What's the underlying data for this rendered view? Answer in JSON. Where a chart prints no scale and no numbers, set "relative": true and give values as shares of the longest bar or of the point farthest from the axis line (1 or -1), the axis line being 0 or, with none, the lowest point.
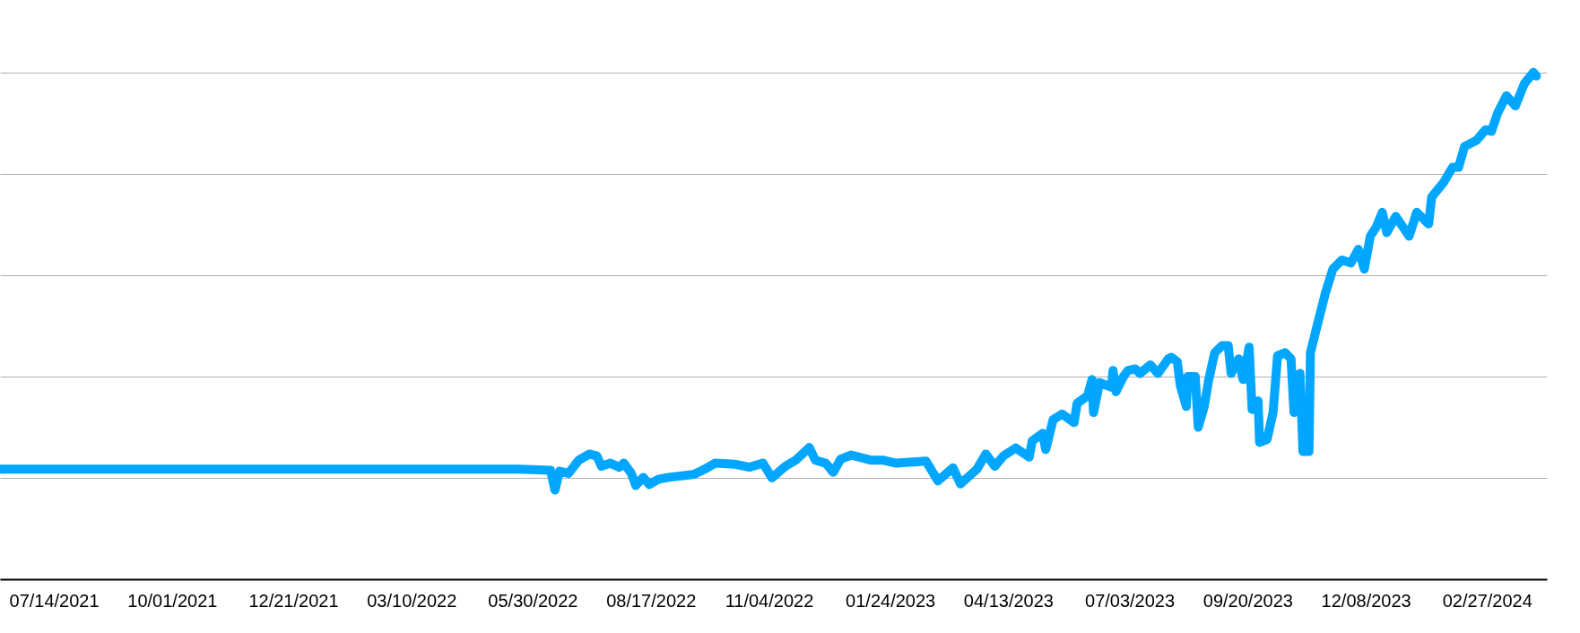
{
  "chart_data": {
    "type": "line",
    "relative": true,
    "color": "#00a6ff",
    "grid": "y",
    "xlim": [
      "2021-06-08",
      "2024-04-07"
    ],
    "xticks": [
      {
        "value": "2021-07-14",
        "label": "07/14/2021"
      },
      {
        "value": "2021-10-01",
        "label": "10/01/2021"
      },
      {
        "value": "2021-12-21",
        "label": "12/21/2021"
      },
      {
        "value": "2022-03-10",
        "label": "03/10/2022"
      },
      {
        "value": "2022-05-30",
        "label": "05/30/2022"
      },
      {
        "value": "2022-08-17",
        "label": "08/17/2022"
      },
      {
        "value": "2022-11-04",
        "label": "11/04/2022"
      },
      {
        "value": "2023-01-24",
        "label": "01/24/2023"
      },
      {
        "value": "2023-04-13",
        "label": "04/13/2023"
      },
      {
        "value": "2023-07-03",
        "label": "07/03/2023"
      },
      {
        "value": "2023-09-20",
        "label": "09/20/2023"
      },
      {
        "value": "2023-12-08",
        "label": "12/08/2023"
      },
      {
        "value": "2024-02-27",
        "label": "02/27/2024"
      }
    ],
    "x": [
      "2021-06-08",
      "2022-05-21",
      "2022-06-11",
      "2022-06-14",
      "2022-06-17",
      "2022-06-23",
      "2022-06-30",
      "2022-07-07",
      "2022-07-12",
      "2022-07-15",
      "2022-07-21",
      "2022-07-27",
      "2022-07-30",
      "2022-08-04",
      "2022-08-07",
      "2022-08-12",
      "2022-08-16",
      "2022-08-22",
      "2022-08-29",
      "2022-09-15",
      "2022-09-22",
      "2022-09-29",
      "2022-10-12",
      "2022-10-22",
      "2022-10-31",
      "2022-11-06",
      "2022-11-15",
      "2022-11-22",
      "2022-12-01",
      "2022-12-05",
      "2022-12-12",
      "2022-12-17",
      "2022-12-22",
      "2022-12-29",
      "2023-01-11",
      "2023-01-19",
      "2023-01-28",
      "2023-02-17",
      "2023-02-25",
      "2023-03-07",
      "2023-03-12",
      "2023-03-23",
      "2023-03-29",
      "2023-04-04",
      "2023-04-10",
      "2023-04-18",
      "2023-04-27",
      "2023-04-29",
      "2023-05-06",
      "2023-05-08",
      "2023-05-13",
      "2023-05-19",
      "2023-05-27",
      "2023-05-29",
      "2023-06-05",
      "2023-06-08",
      "2023-06-09",
      "2023-06-13",
      "2023-06-21",
      "2023-06-22",
      "2023-06-24",
      "2023-06-29",
      "2023-07-02",
      "2023-07-07",
      "2023-07-10",
      "2023-07-17",
      "2023-07-22",
      "2023-07-29",
      "2023-07-31",
      "2023-08-04",
      "2023-08-06",
      "2023-08-10",
      "2023-08-11",
      "2023-08-16",
      "2023-08-18",
      "2023-08-22",
      "2023-08-25",
      "2023-08-29",
      "2023-09-03",
      "2023-09-07",
      "2023-09-09",
      "2023-09-14",
      "2023-09-17",
      "2023-09-21",
      "2023-09-23",
      "2023-09-27",
      "2023-09-28",
      "2023-10-03",
      "2023-10-07",
      "2023-10-10",
      "2023-10-15",
      "2023-10-19",
      "2023-10-21",
      "2023-10-25",
      "2023-10-27",
      "2023-10-31",
      "2023-11-01",
      "2023-11-06",
      "2023-11-11",
      "2023-11-16",
      "2023-11-22",
      "2023-11-28",
      "2023-12-03",
      "2023-12-07",
      "2023-12-11",
      "2023-12-15",
      "2023-12-19",
      "2023-12-22",
      "2023-12-28",
      "2024-01-06",
      "2024-01-11",
      "2024-01-19",
      "2024-01-21",
      "2024-01-29",
      "2024-02-04",
      "2024-02-08",
      "2024-02-12",
      "2024-02-20",
      "2024-02-26",
      "2024-03-01",
      "2024-03-05",
      "2024-03-11",
      "2024-03-17",
      "2024-03-23",
      "2024-03-29",
      "2024-03-31"
    ],
    "values": [
      0.217,
      0.217,
      0.215,
      0.176,
      0.213,
      0.209,
      0.235,
      0.247,
      0.243,
      0.223,
      0.229,
      0.221,
      0.229,
      0.209,
      0.185,
      0.201,
      0.187,
      0.197,
      0.201,
      0.207,
      0.217,
      0.229,
      0.227,
      0.221,
      0.229,
      0.2,
      0.223,
      0.235,
      0.26,
      0.235,
      0.229,
      0.211,
      0.237,
      0.245,
      0.235,
      0.235,
      0.229,
      0.233,
      0.194,
      0.22,
      0.188,
      0.217,
      0.247,
      0.223,
      0.244,
      0.259,
      0.241,
      0.273,
      0.288,
      0.256,
      0.315,
      0.326,
      0.309,
      0.347,
      0.362,
      0.394,
      0.329,
      0.388,
      0.379,
      0.412,
      0.37,
      0.4,
      0.412,
      0.415,
      0.406,
      0.423,
      0.406,
      0.435,
      0.438,
      0.429,
      0.382,
      0.341,
      0.4,
      0.4,
      0.3,
      0.341,
      0.394,
      0.447,
      0.461,
      0.461,
      0.406,
      0.435,
      0.394,
      0.458,
      0.335,
      0.352,
      0.27,
      0.276,
      0.329,
      0.441,
      0.447,
      0.435,
      0.329,
      0.406,
      0.252,
      0.252,
      0.447,
      0.507,
      0.565,
      0.612,
      0.63,
      0.624,
      0.651,
      0.612,
      0.677,
      0.695,
      0.724,
      0.684,
      0.716,
      0.677,
      0.724,
      0.701,
      0.754,
      0.783,
      0.813,
      0.813,
      0.854,
      0.866,
      0.887,
      0.884,
      0.919,
      0.954,
      0.934,
      0.978,
      1,
      0.993
    ]
  }
}
